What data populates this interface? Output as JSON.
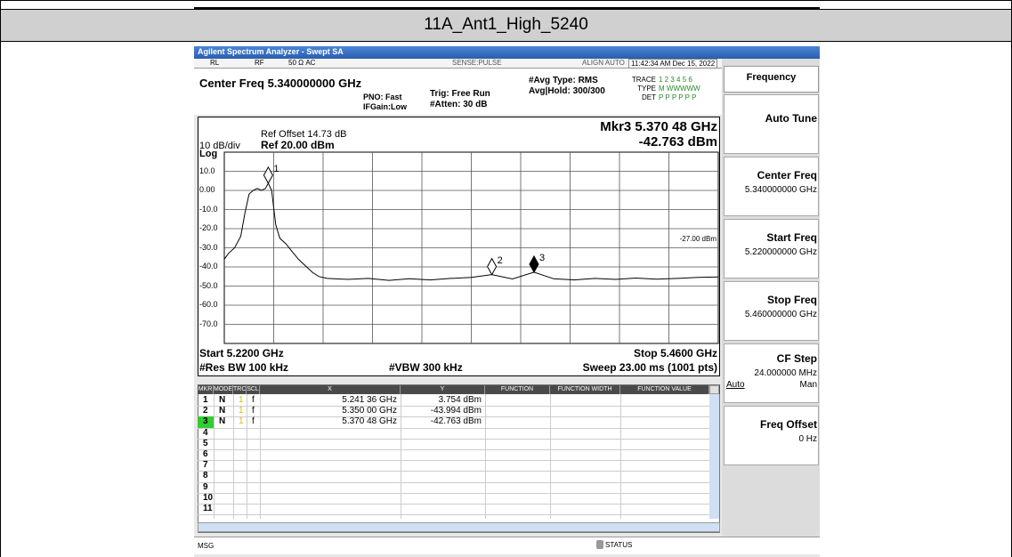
{
  "document_title": "11A_Ant1_High_5240",
  "analyzer": {
    "window_title": "Agilent Spectrum Analyzer - Swept SA",
    "status_bar": {
      "mode": "RL",
      "rf": "RF",
      "impedance": "50 Ω  AC",
      "sense": "SENSE:PULSE",
      "align": "ALIGN AUTO",
      "timestamp": "11:42:34 AM Dec 15, 2022"
    },
    "settings": {
      "center_freq": "Center Freq 5.340000000 GHz",
      "pno": "PNO: Fast",
      "ifgain": "IFGain:Low",
      "trig": "Trig: Free Run",
      "atten": "#Atten: 30 dB",
      "avg_type": "#Avg Type: RMS",
      "avg_hold": "Avg|Hold: 300/300",
      "trace_label": "TRACE",
      "trace_numbers": "1 2 3 4 5 6",
      "type_label": "TYPE",
      "type_values": "M WWWWW",
      "det_label": "DET",
      "det_values": "P P P P P P"
    },
    "plot": {
      "ref_offset": "Ref Offset 14.73 dB",
      "scale": "10 dB/div",
      "ref_level": "Ref 20.00 dBm",
      "scale_type": "Log",
      "marker_readout_freq": "Mkr3 5.370 48 GHz",
      "marker_readout_level": "-42.763 dBm",
      "display_line": -27,
      "display_line_label": "-27.00 dBm",
      "xlim": [
        5.22,
        5.46
      ],
      "ylim": [
        -80,
        20
      ],
      "xgrid": [
        5.244,
        5.268,
        5.292,
        5.316,
        5.34,
        5.364,
        5.388,
        5.412,
        5.436
      ],
      "yticks": [
        {
          "value": 10,
          "label": "10.0"
        },
        {
          "value": 0,
          "label": "0.00"
        },
        {
          "value": -10,
          "label": "-10.0"
        },
        {
          "value": -20,
          "label": "-20.0"
        },
        {
          "value": -30,
          "label": "-30.0"
        },
        {
          "value": -40,
          "label": "-40.0"
        },
        {
          "value": -50,
          "label": "-50.0"
        },
        {
          "value": -60,
          "label": "-60.0"
        },
        {
          "value": -70,
          "label": "-70.0"
        }
      ],
      "trace": {
        "color": "#000000",
        "x": [
          5.22,
          5.222,
          5.225,
          5.228,
          5.23,
          5.232,
          5.234,
          5.236,
          5.238,
          5.24,
          5.24136,
          5.243,
          5.245,
          5.247,
          5.25,
          5.253,
          5.256,
          5.26,
          5.263,
          5.266,
          5.27,
          5.28,
          5.29,
          5.3,
          5.31,
          5.32,
          5.33,
          5.34,
          5.35,
          5.36,
          5.37048,
          5.38,
          5.39,
          5.4,
          5.41,
          5.42,
          5.43,
          5.44,
          5.45,
          5.46
        ],
        "y": [
          -36,
          -33,
          -30,
          -24,
          -12,
          -2,
          0,
          1,
          0,
          1,
          3.754,
          0,
          -18,
          -25,
          -28,
          -32,
          -36,
          -40,
          -43,
          -45,
          -46,
          -46.5,
          -46,
          -47,
          -46.2,
          -46.8,
          -46,
          -45.5,
          -43.994,
          -46.3,
          -42.763,
          -46.2,
          -46.8,
          -46,
          -46.5,
          -45.8,
          -46.4,
          -46,
          -45.5,
          -45.2
        ]
      },
      "markers": [
        {
          "label": "1",
          "x": 5.24136,
          "y": 3.754
        },
        {
          "label": "2",
          "x": 5.35,
          "y": -43.994
        },
        {
          "label": "3",
          "x": 5.37048,
          "y": -42.763
        }
      ],
      "start": "Start 5.2200 GHz",
      "stop": "Stop 5.4600 GHz",
      "rbw": "#Res BW 100 kHz",
      "vbw": "#VBW 300 kHz",
      "sweep": "Sweep  23.00 ms (1001 pts)"
    },
    "marker_table": {
      "headers": [
        "MKR",
        "MODE",
        "TRC",
        "SCL",
        "X",
        "Y",
        "FUNCTION",
        "FUNCTION WIDTH",
        "FUNCTION VALUE"
      ],
      "rows": [
        {
          "mkr": "1",
          "mode": "N",
          "trc": "1",
          "scl": "f",
          "x": "5.241 36 GHz",
          "y": "3.754 dBm"
        },
        {
          "mkr": "2",
          "mode": "N",
          "trc": "1",
          "scl": "f",
          "x": "5.350 00 GHz",
          "y": "-43.994 dBm"
        },
        {
          "mkr": "3",
          "mode": "N",
          "trc": "1",
          "scl": "f",
          "x": "5.370 48 GHz",
          "y": "-42.763 dBm",
          "selected": true
        },
        {
          "mkr": "4"
        },
        {
          "mkr": "5"
        },
        {
          "mkr": "6"
        },
        {
          "mkr": "7"
        },
        {
          "mkr": "8"
        },
        {
          "mkr": "9"
        },
        {
          "mkr": "10"
        },
        {
          "mkr": "11"
        }
      ]
    },
    "message_bar": {
      "msg": "MSG",
      "status": "STATUS"
    },
    "softkeys": {
      "menu_title": "Frequency",
      "keys": [
        {
          "label": "Auto Tune"
        },
        {
          "label": "Center Freq",
          "value": "5.340000000 GHz"
        },
        {
          "label": "Start Freq",
          "value": "5.220000000 GHz"
        },
        {
          "label": "Stop Freq",
          "value": "5.460000000 GHz"
        },
        {
          "label": "CF Step",
          "value": "24.000000 MHz",
          "options": [
            "Auto",
            "Man"
          ]
        },
        {
          "label": "Freq Offset",
          "value": "0 Hz"
        }
      ]
    }
  }
}
